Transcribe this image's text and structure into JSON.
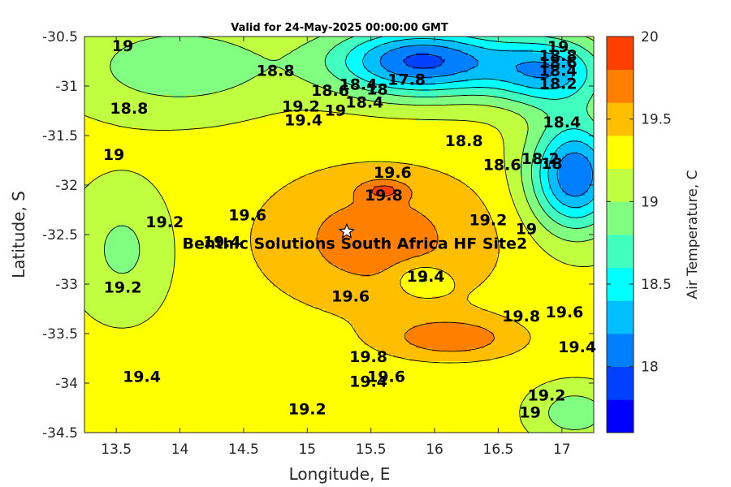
{
  "chart_data": {
    "type": "heatmap",
    "subtype": "filled-contour map",
    "title": "Valid for 24-May-2025 00:00:00 GMT",
    "xlabel": "Longitude, E",
    "ylabel": "Latitude, S",
    "xlim": [
      13.25,
      17.25
    ],
    "ylim": [
      -34.5,
      -30.5
    ],
    "x_ticks": [
      13.5,
      14,
      14.5,
      15,
      15.5,
      16,
      16.5,
      17
    ],
    "y_ticks": [
      -30.5,
      -31,
      -31.5,
      -32,
      -32.5,
      -33,
      -33.5,
      -34,
      -34.5
    ],
    "x_tick_labels": [
      "13.5",
      "14",
      "14.5",
      "15",
      "15.5",
      "16",
      "16.5",
      "17"
    ],
    "y_tick_labels": [
      "-30.5",
      "-31",
      "-31.5",
      "-32",
      "-32.5",
      "-33",
      "-33.5",
      "-34",
      "-34.5"
    ],
    "colorbar": {
      "label": "Air Temperature, C",
      "range": [
        17.6,
        20
      ],
      "ticks": [
        18,
        18.5,
        19,
        19.5,
        20
      ],
      "tick_labels": [
        "18",
        "18.5",
        "19",
        "19.5",
        "20"
      ],
      "levels": [
        17.6,
        17.8,
        18.0,
        18.2,
        18.4,
        18.6,
        18.8,
        19.0,
        19.2,
        19.4,
        19.6,
        19.8,
        20.0
      ],
      "colors": [
        "#0000ff",
        "#0040ff",
        "#0080ff",
        "#00bfff",
        "#00ffff",
        "#40ffbf",
        "#80ff80",
        "#bfff40",
        "#ffff00",
        "#ffbf00",
        "#ff8000",
        "#ff4000",
        "#ff0000"
      ]
    },
    "station": {
      "name": "Benthic Solutions South Africa HF Site2",
      "lon": 15.31,
      "lat": -32.47,
      "marker": "star"
    },
    "contour_labels": [
      {
        "text": "19",
        "lon": 13.55,
        "lat": -30.59
      },
      {
        "text": "18.8",
        "lon": 14.75,
        "lat": -30.84
      },
      {
        "text": "18.8",
        "lon": 13.6,
        "lat": -31.22
      },
      {
        "text": "19",
        "lon": 13.48,
        "lat": -31.69
      },
      {
        "text": "19.2",
        "lon": 14.95,
        "lat": -31.2
      },
      {
        "text": "19.4",
        "lon": 14.97,
        "lat": -31.34
      },
      {
        "text": "18.6",
        "lon": 15.18,
        "lat": -31.04
      },
      {
        "text": "18.4",
        "lon": 15.4,
        "lat": -30.98
      },
      {
        "text": "18",
        "lon": 15.55,
        "lat": -31.03
      },
      {
        "text": "18.4",
        "lon": 15.45,
        "lat": -31.16
      },
      {
        "text": "19",
        "lon": 15.22,
        "lat": -31.24
      },
      {
        "text": "17.8",
        "lon": 15.78,
        "lat": -30.93
      },
      {
        "text": "19",
        "lon": 16.97,
        "lat": -30.6
      },
      {
        "text": "18.8",
        "lon": 16.97,
        "lat": -30.69
      },
      {
        "text": "18.6",
        "lon": 16.97,
        "lat": -30.76
      },
      {
        "text": "18.4",
        "lon": 16.97,
        "lat": -30.84
      },
      {
        "text": "18.2",
        "lon": 16.97,
        "lat": -30.97
      },
      {
        "text": "18.4",
        "lon": 17.0,
        "lat": -31.36
      },
      {
        "text": "18.2",
        "lon": 16.83,
        "lat": -31.73
      },
      {
        "text": "18",
        "lon": 16.92,
        "lat": -31.78
      },
      {
        "text": "18.6",
        "lon": 16.53,
        "lat": -31.79
      },
      {
        "text": "18.8",
        "lon": 16.23,
        "lat": -31.55
      },
      {
        "text": "19.6",
        "lon": 15.67,
        "lat": -31.87
      },
      {
        "text": "19.8",
        "lon": 15.6,
        "lat": -32.1
      },
      {
        "text": "19.6",
        "lon": 14.53,
        "lat": -32.3
      },
      {
        "text": "19.2",
        "lon": 13.88,
        "lat": -32.37
      },
      {
        "text": "19.4",
        "lon": 14.33,
        "lat": -32.57
      },
      {
        "text": "19.2",
        "lon": 16.42,
        "lat": -32.35
      },
      {
        "text": "19",
        "lon": 16.72,
        "lat": -32.44
      },
      {
        "text": "19.4",
        "lon": 15.93,
        "lat": -32.92
      },
      {
        "text": "19.6",
        "lon": 15.34,
        "lat": -33.12
      },
      {
        "text": "19.2",
        "lon": 13.55,
        "lat": -33.03
      },
      {
        "text": "19.8",
        "lon": 16.68,
        "lat": -33.32
      },
      {
        "text": "19.6",
        "lon": 17.02,
        "lat": -33.28
      },
      {
        "text": "19.4",
        "lon": 17.12,
        "lat": -33.63
      },
      {
        "text": "19.8",
        "lon": 15.48,
        "lat": -33.73
      },
      {
        "text": "19.6",
        "lon": 15.62,
        "lat": -33.93
      },
      {
        "text": "19.4",
        "lon": 15.48,
        "lat": -33.98
      },
      {
        "text": "19.4",
        "lon": 13.7,
        "lat": -33.93
      },
      {
        "text": "19.2",
        "lon": 15.0,
        "lat": -34.26
      },
      {
        "text": "19.2",
        "lon": 16.88,
        "lat": -34.12
      },
      {
        "text": "19",
        "lon": 16.75,
        "lat": -34.29
      }
    ]
  }
}
